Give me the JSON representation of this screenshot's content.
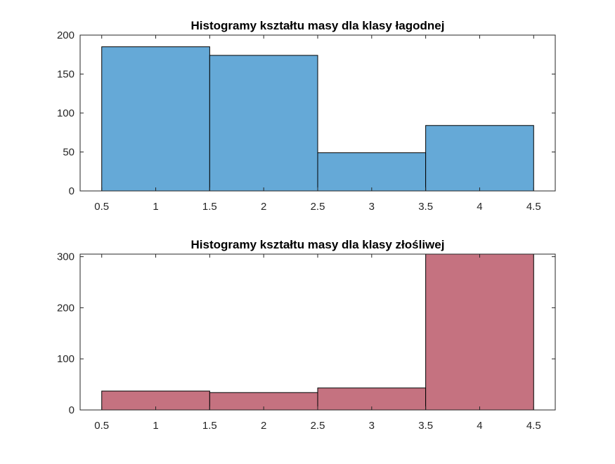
{
  "chart_data": [
    {
      "type": "histogram",
      "title": "Histogramy kształtu masy dla klasy łagodnej",
      "xlabel": "",
      "ylabel": "",
      "bin_edges": [
        0.5,
        1.5,
        2.5,
        3.5,
        4.5
      ],
      "values": [
        185,
        174,
        49,
        84
      ],
      "xlim": [
        0.3,
        4.7
      ],
      "ylim": [
        0,
        200
      ],
      "xticks": [
        0.5,
        1,
        1.5,
        2,
        2.5,
        3,
        3.5,
        4,
        4.5
      ],
      "xtick_labels": [
        "0.5",
        "1",
        "1.5",
        "2",
        "2.5",
        "3",
        "3.5",
        "4",
        "4.5"
      ],
      "yticks": [
        0,
        50,
        100,
        150,
        200
      ],
      "ytick_labels": [
        "0",
        "50",
        "100",
        "150",
        "200"
      ],
      "bar_color": "#65A9D7",
      "edge_color": "#000000",
      "grid": false
    },
    {
      "type": "histogram",
      "title": "Histogramy kształtu masy dla klasy złośliwej",
      "xlabel": "",
      "ylabel": "",
      "bin_edges": [
        0.5,
        1.5,
        2.5,
        3.5,
        4.5
      ],
      "values": [
        37,
        34,
        43,
        305
      ],
      "xlim": [
        0.3,
        4.7
      ],
      "ylim": [
        0,
        305
      ],
      "xticks": [
        0.5,
        1,
        1.5,
        2,
        2.5,
        3,
        3.5,
        4,
        4.5
      ],
      "xtick_labels": [
        "0.5",
        "1",
        "1.5",
        "2",
        "2.5",
        "3",
        "3.5",
        "4",
        "4.5"
      ],
      "yticks": [
        0,
        100,
        200,
        300
      ],
      "ytick_labels": [
        "0",
        "100",
        "200",
        "300"
      ],
      "bar_color": "#C57280",
      "edge_color": "#000000",
      "grid": false
    }
  ]
}
